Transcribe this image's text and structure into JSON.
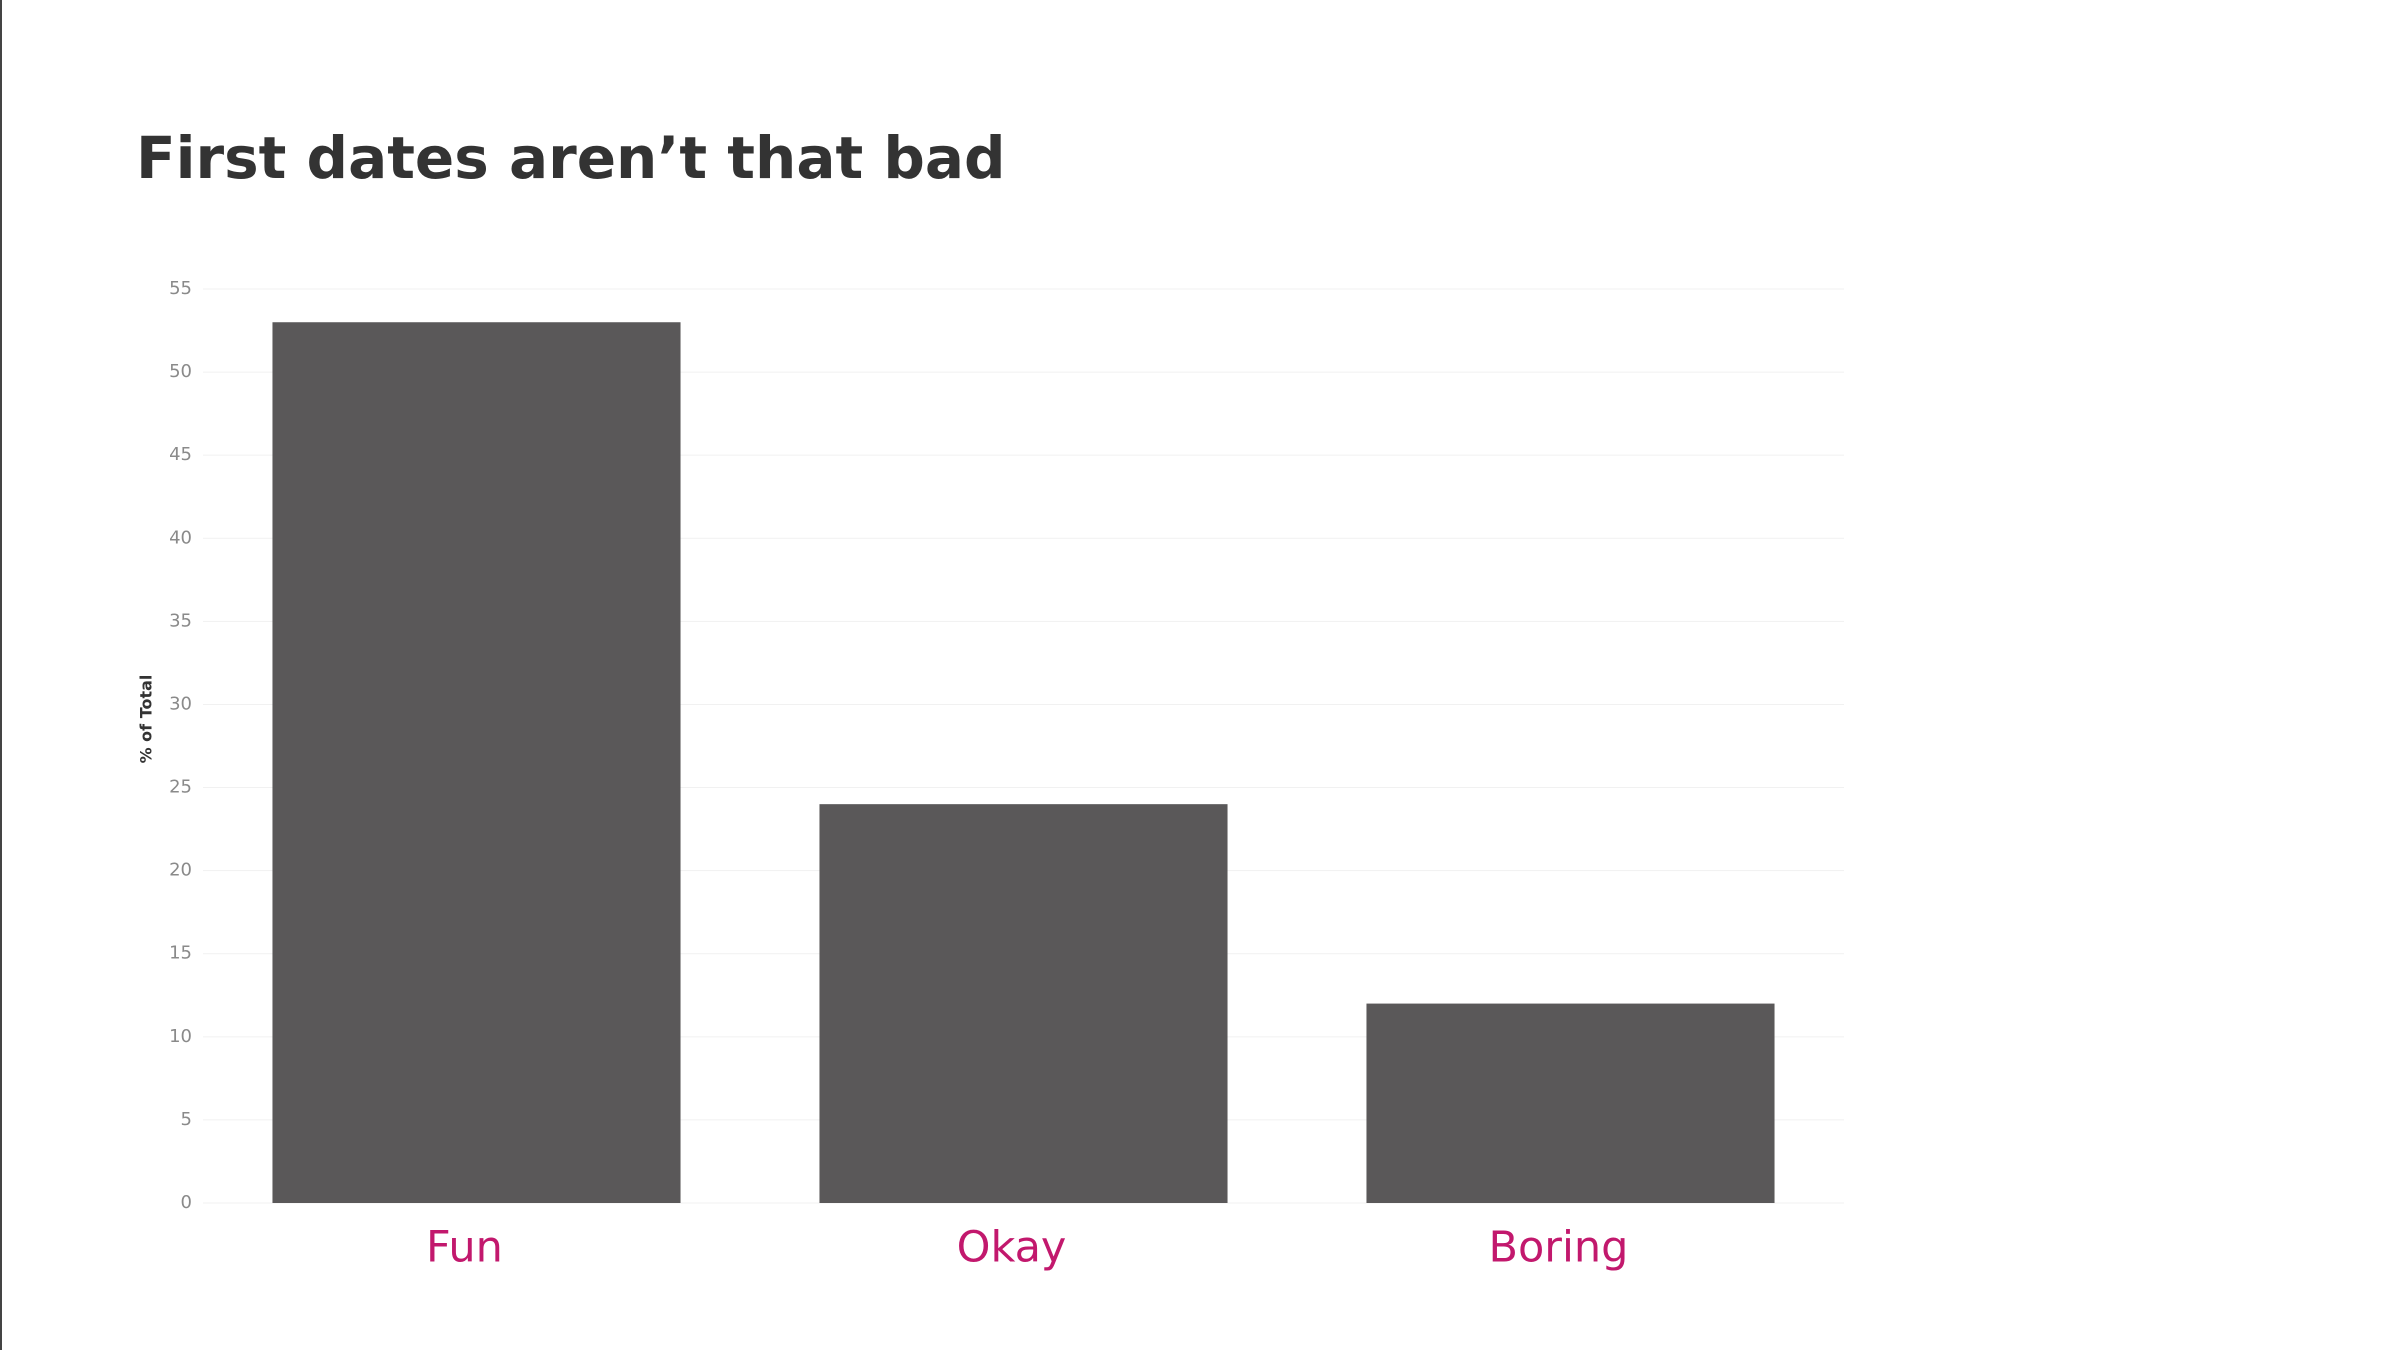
{
  "chart_data": {
    "type": "bar",
    "title": "First dates aren’t that bad",
    "y_label": "% of Total",
    "categories": [
      "Fun",
      "Okay",
      "Boring"
    ],
    "values": [
      53,
      24,
      12
    ],
    "color": "#5a5859",
    "ylim": [
      0,
      55
    ],
    "yticks": [
      0,
      5,
      10,
      15,
      20,
      25,
      30,
      35,
      40,
      45,
      50,
      55
    ],
    "grid": true
  }
}
